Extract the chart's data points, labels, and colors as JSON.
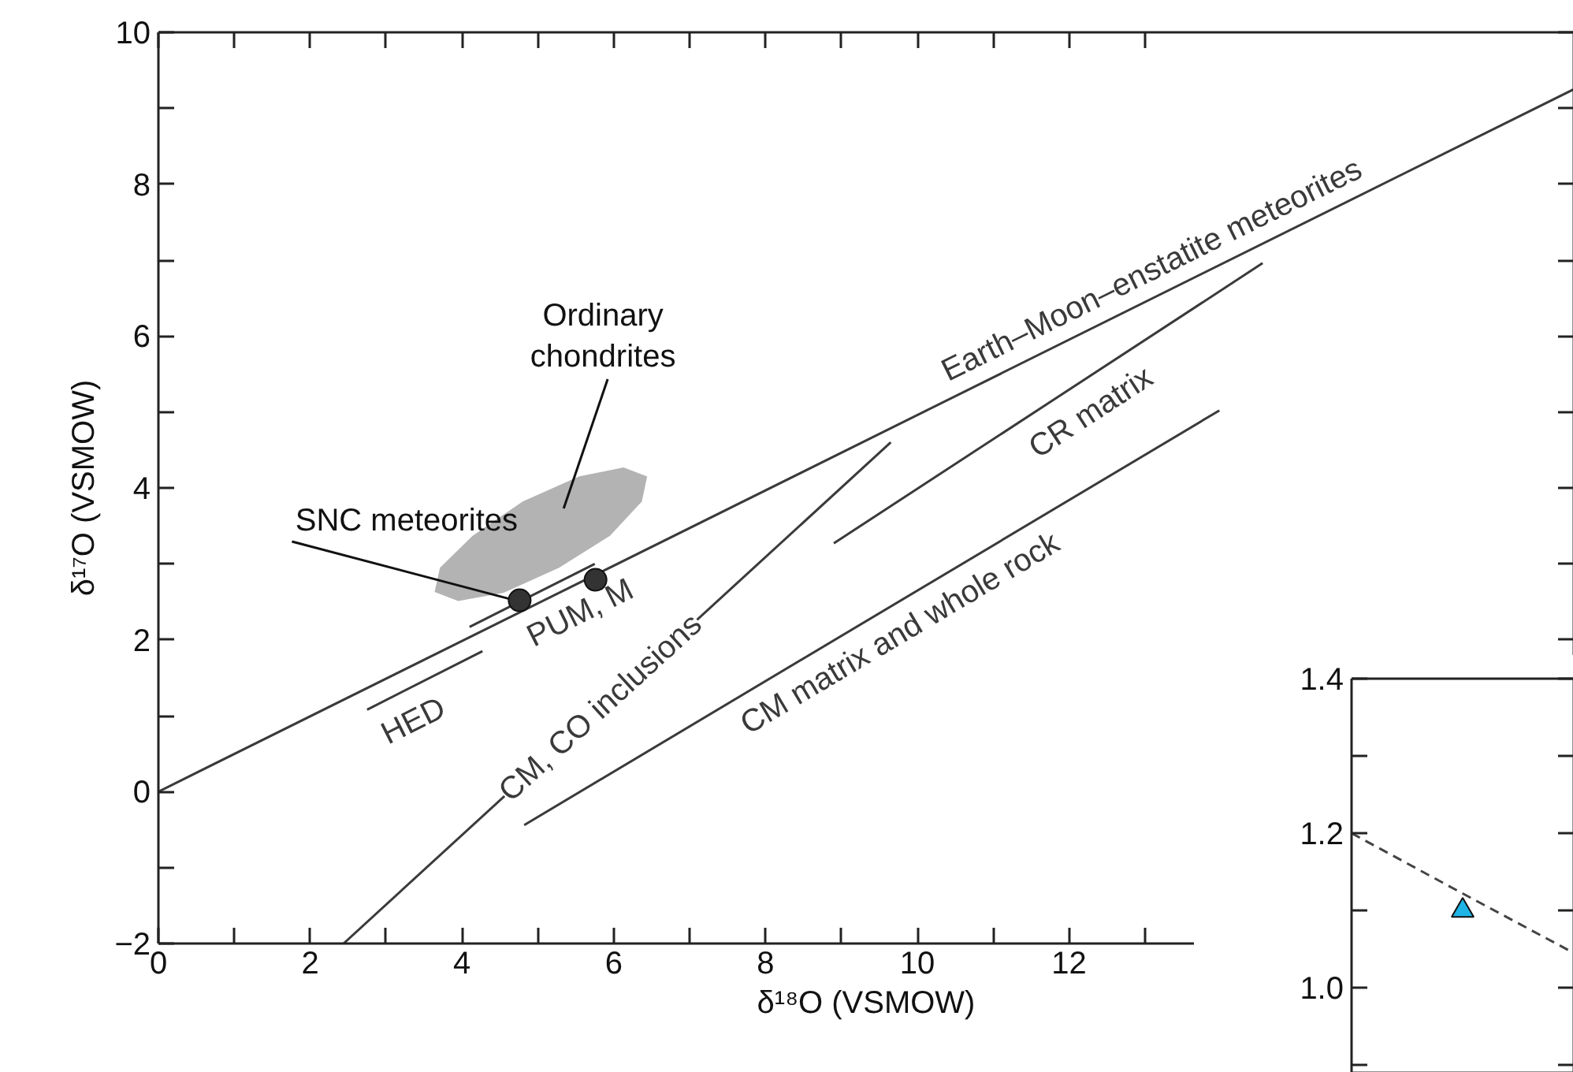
{
  "chart_data": [
    {
      "type": "line",
      "xlabel": "δ¹⁸O (VSMOW)",
      "ylabel": "δ¹⁷O (VSMOW)",
      "xlim": [
        0,
        18.65
      ],
      "ylim": [
        -2,
        10
      ],
      "xticks": [
        0,
        {
          "value": 1,
          "label": null
        },
        2,
        {
          "value": 3,
          "label": null
        },
        4,
        {
          "value": 5,
          "label": null
        },
        6,
        {
          "value": 7,
          "label": null
        },
        8,
        {
          "value": 9,
          "label": null
        },
        10,
        {
          "value": 11,
          "label": null
        },
        12,
        {
          "value": 13,
          "label": null
        }
      ],
      "yticks": [
        -2,
        {
          "value": -1,
          "label": null
        },
        0,
        {
          "value": 1,
          "label": null
        },
        2,
        {
          "value": 3,
          "label": null
        },
        4,
        {
          "value": 5,
          "label": null
        },
        6,
        {
          "value": 7,
          "label": null
        },
        8,
        {
          "value": 9,
          "label": null
        },
        10
      ],
      "grid": false,
      "series": [
        {
          "type": "area",
          "color": "#b3b3b3",
          "x": [
            6.44,
            6.13,
            5.54,
            4.8,
            4.14,
            3.71,
            3.64,
            3.95,
            4.55,
            5.28,
            5.95,
            6.37
          ],
          "values": [
            4.15,
            4.27,
            4.15,
            3.82,
            3.37,
            2.95,
            2.63,
            2.51,
            2.62,
            2.95,
            3.37,
            3.82
          ]
        },
        {
          "name": "Earth–Moon–enstatite meteorites",
          "color": "#3a3a3a",
          "x": [
            0,
            18.65
          ],
          "values": [
            0,
            9.25
          ]
        },
        {
          "name": "HED",
          "color": "#3a3a3a",
          "x": [
            2.75,
            4.27
          ],
          "values": [
            1.08,
            1.85
          ]
        },
        {
          "name": "PUM, M",
          "color": "#3a3a3a",
          "x": [
            4.1,
            5.75
          ],
          "values": [
            2.17,
            3.0
          ]
        },
        {
          "name": "CM, CO inclusions",
          "color": "#3a3a3a",
          "x": [
            2.44,
            9.65
          ],
          "values": [
            -2,
            4.6
          ]
        },
        {
          "name": "CR matrix",
          "color": "#3a3a3a",
          "x": [
            8.9,
            14.55
          ],
          "values": [
            3.27,
            6.96
          ]
        },
        {
          "name": "CM matrix and whole rock",
          "color": "#3a3a3a",
          "x": [
            4.82,
            13.98
          ],
          "values": [
            -0.44,
            5.02
          ]
        },
        {
          "type": "scatter",
          "color": "#333333",
          "marker": "circle",
          "x": [
            4.76,
            5.76
          ],
          "values": [
            2.52,
            2.79
          ]
        }
      ],
      "annotations": [
        "Ordinary\nchondrites",
        {
          "text": "SNC meteorites",
          "x": 4.62,
          "y": 2.54
        }
      ]
    },
    {
      "type": "line",
      "categories": [
        null,
        null,
        null
      ],
      "ylim": [
        0.89,
        1.4
      ],
      "yticks": [
        {
          "value": 0.9,
          "label": null
        },
        {
          "value": 1,
          "label": "1.0"
        },
        {
          "value": 1.1,
          "label": null
        },
        1.2,
        {
          "value": 1.3,
          "label": null
        },
        1.4
      ],
      "tick_labels": "y",
      "series": [
        {
          "color": "#444444",
          "line_style": "dashed",
          "values": [
            1.2,
            1.122,
            1.045
          ]
        },
        {
          "type": "scatter",
          "color": "#1eb4e6",
          "marker": "triangle",
          "values": [
            null,
            1.1,
            null
          ]
        }
      ]
    }
  ]
}
